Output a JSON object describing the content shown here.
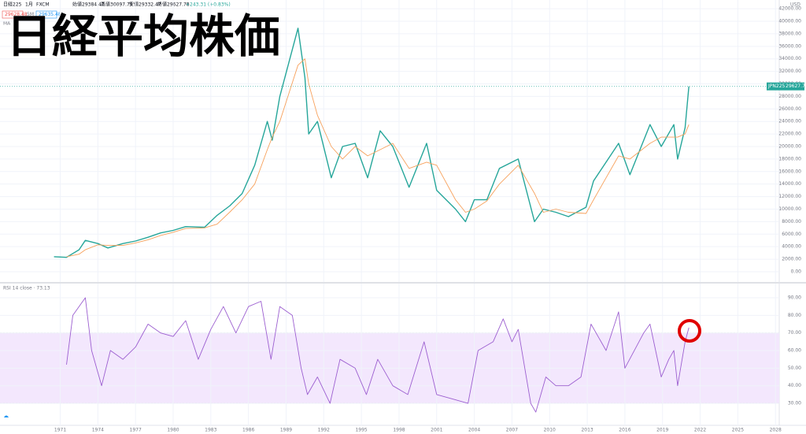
{
  "header": {
    "symbol": "日経225",
    "interval": "1月",
    "source": "FXCM",
    "ohlc": [
      "始値29384.47",
      "高値30097.79",
      "安値29332.47",
      "終値29627.78",
      "+243.31 (+0.83%)"
    ],
    "bid": "29628.48",
    "spread": "5M",
    "ask": "29635.48",
    "ma_label": "MA",
    "currency": "USD",
    "price_tag": "JPN225",
    "price_value": "29627.78"
  },
  "chart_data": [
    {
      "type": "line",
      "title": "日経平均株価",
      "x": [
        1970.5,
        1971.5,
        1972.5,
        1973.0,
        1974.0,
        1974.8,
        1976.0,
        1977.0,
        1978.0,
        1979.0,
        1980.0,
        1981.0,
        1982.5,
        1983.5,
        1984.5,
        1985.5,
        1986.5,
        1987.5,
        1987.9,
        1988.5,
        1989.95,
        1990.5,
        1990.8,
        1991.5,
        1992.6,
        1993.5,
        1994.5,
        1995.5,
        1996.5,
        1997.5,
        1998.8,
        2000.2,
        2001.0,
        2002.5,
        2003.3,
        2004.0,
        2005.0,
        2006.0,
        2007.5,
        2008.8,
        2009.5,
        2010.5,
        2011.5,
        2012.9,
        2013.5,
        2015.5,
        2016.4,
        2018.0,
        2018.9,
        2019.9,
        2020.2,
        2020.8,
        2021.1
      ],
      "series": [
        {
          "name": "JPN225",
          "color": "#26a69a",
          "values": [
            2400,
            2300,
            3500,
            5000,
            4500,
            3800,
            4500,
            4900,
            5500,
            6200,
            6600,
            7200,
            7100,
            9000,
            10500,
            12500,
            17000,
            24000,
            21000,
            28000,
            38900,
            31000,
            22000,
            24000,
            15000,
            20000,
            20500,
            15000,
            22500,
            20000,
            13500,
            20500,
            13000,
            10000,
            8000,
            11500,
            11500,
            16500,
            18000,
            8000,
            10000,
            9500,
            8800,
            10300,
            14500,
            20500,
            15500,
            23500,
            20000,
            23500,
            18000,
            23000,
            29600
          ]
        },
        {
          "name": "MA",
          "color": "#f7a15c",
          "values": [
            null,
            2400,
            2800,
            3500,
            4300,
            4200,
            4200,
            4600,
            5100,
            5800,
            6300,
            6900,
            7000,
            7600,
            9500,
            11500,
            14000,
            19500,
            21500,
            24000,
            33000,
            34000,
            30000,
            25000,
            20000,
            18000,
            20000,
            18500,
            19500,
            20500,
            16500,
            17500,
            17000,
            11500,
            9500,
            10000,
            11300,
            14000,
            17000,
            12500,
            9500,
            10000,
            9500,
            9300,
            11500,
            18500,
            18000,
            20500,
            21500,
            21500,
            21500,
            22000,
            23500
          ]
        }
      ],
      "xlim": [
        1966.2,
        2028.3
      ],
      "ylim": [
        -1640,
        43400
      ],
      "yticks": [
        {
          "value": 0,
          "label": "0.00"
        },
        {
          "value": 2000,
          "label": "2000.00"
        },
        {
          "value": 4000,
          "label": "4000.00"
        },
        {
          "value": 6000,
          "label": "6000.00"
        },
        {
          "value": 8000,
          "label": "8000.00"
        },
        {
          "value": 10000,
          "label": "10000.00"
        },
        {
          "value": 12000,
          "label": "12000.00"
        },
        {
          "value": 14000,
          "label": "14000.00"
        },
        {
          "value": 16000,
          "label": "16000.00"
        },
        {
          "value": 18000,
          "label": "18000.00"
        },
        {
          "value": 20000,
          "label": "20000.00"
        },
        {
          "value": 22000,
          "label": "22000.00"
        },
        {
          "value": 24000,
          "label": "24000.00"
        },
        {
          "value": 26000,
          "label": "26000.00"
        },
        {
          "value": 28000,
          "label": "28000.00"
        },
        {
          "value": 30000,
          "label": "30000.00"
        },
        {
          "value": 32000,
          "label": "32000.00"
        },
        {
          "value": 34000,
          "label": "34000.00"
        },
        {
          "value": 36000,
          "label": "36000.00"
        },
        {
          "value": 38000,
          "label": "38000.00"
        },
        {
          "value": 40000,
          "label": "40000.00"
        },
        {
          "value": 42000,
          "label": "42000.00"
        }
      ],
      "grid": true
    },
    {
      "type": "line",
      "title": "RSI 14 close · 73.13",
      "x": [
        1971.5,
        1972.0,
        1973.0,
        1973.5,
        1974.3,
        1975.0,
        1976.0,
        1977.0,
        1978.0,
        1979.0,
        1980.0,
        1981.0,
        1982.0,
        1983.0,
        1984.0,
        1985.0,
        1986.0,
        1987.0,
        1987.8,
        1988.5,
        1989.5,
        1990.2,
        1990.7,
        1991.5,
        1992.5,
        1993.3,
        1994.5,
        1995.4,
        1996.3,
        1997.5,
        1998.7,
        2000.0,
        2001.0,
        2002.5,
        2003.5,
        2004.3,
        2005.5,
        2006.3,
        2007.0,
        2007.5,
        2008.5,
        2008.9,
        2009.7,
        2010.5,
        2011.5,
        2012.5,
        2013.3,
        2014.5,
        2015.5,
        2016.0,
        2017.5,
        2018.0,
        2018.9,
        2019.5,
        2019.9,
        2020.2,
        2020.8,
        2021.1
      ],
      "values": [
        52,
        80,
        90,
        60,
        40,
        60,
        55,
        62,
        75,
        70,
        68,
        77,
        55,
        72,
        85,
        70,
        85,
        88,
        55,
        85,
        80,
        50,
        35,
        45,
        30,
        55,
        50,
        35,
        55,
        40,
        35,
        65,
        35,
        32,
        30,
        60,
        65,
        78,
        65,
        72,
        30,
        25,
        45,
        40,
        40,
        45,
        75,
        60,
        82,
        50,
        70,
        75,
        45,
        55,
        60,
        40,
        65,
        73
      ],
      "color": "#9c5fd0",
      "band": [
        30,
        70
      ],
      "band_color": "#f3e7fd",
      "xlim": [
        1966.2,
        2028.3
      ],
      "ylim": [
        17.5,
        98.06
      ],
      "yticks": [
        {
          "value": 30,
          "label": "30.00"
        },
        {
          "value": 40,
          "label": "40.00"
        },
        {
          "value": 50,
          "label": "50.00"
        },
        {
          "value": 60,
          "label": "60.00"
        },
        {
          "value": 70,
          "label": "70.00"
        },
        {
          "value": 80,
          "label": "80.00"
        },
        {
          "value": 90,
          "label": "90.00"
        }
      ],
      "xticks": [
        1971,
        1974,
        1977,
        1980,
        1983,
        1986,
        1989,
        1992,
        1995,
        1998,
        2001,
        2004,
        2007,
        2010,
        2013,
        2016,
        2019,
        2022,
        2025,
        2028
      ],
      "grid": true
    }
  ]
}
